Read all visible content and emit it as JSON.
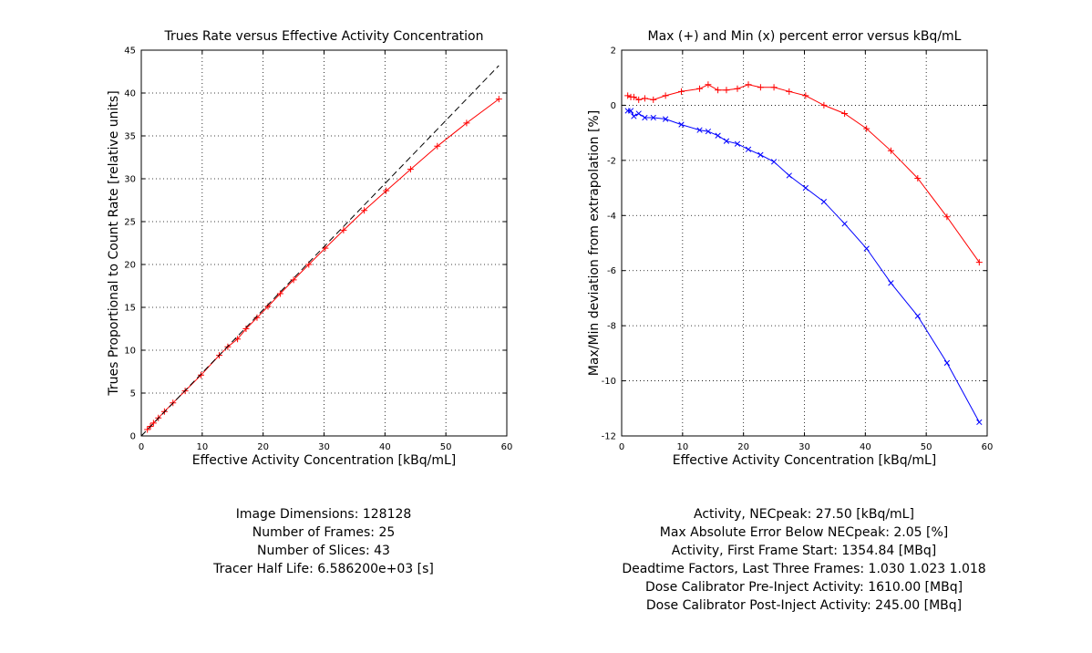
{
  "chart_data": [
    {
      "type": "line",
      "title": "Trues Rate versus Effective Activity Concentration",
      "xlabel": "Effective Activity Concentration [kBq/mL]",
      "ylabel": "Trues Proportional to Count Rate [relative units]",
      "xlim": [
        0,
        60
      ],
      "ylim": [
        0,
        45
      ],
      "xticks": [
        0,
        10,
        20,
        30,
        40,
        50,
        60
      ],
      "yticks": [
        0,
        5,
        10,
        15,
        20,
        25,
        30,
        35,
        40,
        45
      ],
      "grid": true,
      "series": [
        {
          "color": "#ff0000",
          "marker": "+",
          "line_style": "solid",
          "x": [
            1.0,
            1.5,
            2.0,
            2.8,
            3.8,
            5.2,
            7.2,
            9.8,
            12.8,
            14.2,
            15.8,
            17.2,
            19.0,
            20.8,
            22.8,
            25.0,
            27.5,
            30.2,
            33.2,
            36.6,
            40.2,
            44.2,
            48.6,
            53.4,
            58.7
          ],
          "y": [
            0.75,
            1.12,
            1.5,
            2.1,
            2.85,
            3.85,
            5.25,
            7.1,
            9.4,
            10.4,
            11.3,
            12.5,
            13.8,
            15.1,
            16.6,
            18.2,
            20.0,
            21.9,
            24.0,
            26.3,
            28.6,
            31.1,
            33.8,
            36.5,
            39.3
          ]
        },
        {
          "color": "#000000",
          "marker": "none",
          "line_style": "dashed",
          "x": [
            0,
            58.7
          ],
          "y": [
            0,
            43.2
          ]
        }
      ]
    },
    {
      "type": "line",
      "title": "Max (+) and Min (x) percent error versus kBq/mL",
      "xlabel": "Effective Activity Concentration [kBq/mL]",
      "ylabel": "Max/Min deviation from extrapolation [%]",
      "xlim": [
        0,
        60
      ],
      "ylim": [
        -12,
        2
      ],
      "xticks": [
        0,
        10,
        20,
        30,
        40,
        50,
        60
      ],
      "yticks": [
        -12,
        -10,
        -8,
        -6,
        -4,
        -2,
        0,
        2
      ],
      "grid": true,
      "series": [
        {
          "color": "#ff0000",
          "marker": "+",
          "x": [
            1.0,
            1.5,
            2.0,
            2.8,
            3.8,
            5.2,
            7.2,
            9.8,
            12.8,
            14.2,
            15.8,
            17.2,
            19.0,
            20.8,
            22.8,
            25.0,
            27.5,
            30.2,
            33.2,
            36.6,
            40.2,
            44.2,
            48.6,
            53.4,
            58.7
          ],
          "y": [
            0.35,
            0.3,
            0.3,
            0.2,
            0.25,
            0.2,
            0.35,
            0.5,
            0.6,
            0.75,
            0.55,
            0.55,
            0.6,
            0.75,
            0.65,
            0.65,
            0.5,
            0.35,
            0.0,
            -0.3,
            -0.85,
            -1.65,
            -2.65,
            -4.05,
            -5.7
          ]
        },
        {
          "color": "#0000ff",
          "marker": "x",
          "x": [
            1.0,
            1.5,
            2.0,
            2.8,
            3.8,
            5.2,
            7.2,
            9.8,
            12.8,
            14.2,
            15.8,
            17.2,
            19.0,
            20.8,
            22.8,
            25.0,
            27.5,
            30.2,
            33.2,
            36.6,
            40.2,
            44.2,
            48.6,
            53.4,
            58.7
          ],
          "y": [
            -0.2,
            -0.2,
            -0.4,
            -0.3,
            -0.45,
            -0.45,
            -0.5,
            -0.7,
            -0.9,
            -0.95,
            -1.1,
            -1.3,
            -1.4,
            -1.6,
            -1.8,
            -2.05,
            -2.55,
            -3.0,
            -3.5,
            -4.3,
            -5.2,
            -6.45,
            -7.65,
            -9.35,
            -11.5
          ]
        }
      ]
    }
  ],
  "info_left": [
    "Image Dimensions: 128128",
    "Number of Frames: 25",
    "Number of Slices: 43",
    "Tracer Half Life: 6.586200e+03 [s]"
  ],
  "info_right": [
    "Activity, NECpeak: 27.50 [kBq/mL]",
    "Max Absolute Error Below NECpeak: 2.05 [%]",
    "Activity, First Frame Start: 1354.84 [MBq]",
    "Deadtime Factors, Last Three Frames: 1.030 1.023 1.018",
    "Dose Calibrator Pre-Inject Activity: 1610.00 [MBq]",
    "Dose Calibrator Post-Inject Activity: 245.00 [MBq]"
  ]
}
